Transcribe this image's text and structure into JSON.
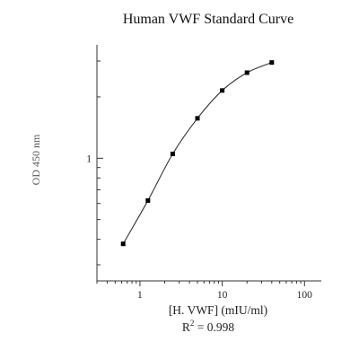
{
  "chart_data": {
    "type": "line",
    "title": "Human VWF Standard Curve",
    "xlabel": "[H. VWF] (mIU/ml)",
    "ylabel": "OD 450 nm",
    "x_scale": "log",
    "y_scale": "log",
    "xlim": [
      0.3,
      160
    ],
    "ylim": [
      0.25,
      3.6
    ],
    "x_tick_labels": [
      "1",
      "10",
      "100"
    ],
    "y_tick_labels": [
      "1"
    ],
    "series": [
      {
        "x": [
          0.625,
          1.25,
          2.5,
          5,
          10,
          20,
          40
        ],
        "values": [
          0.38,
          0.62,
          1.05,
          1.57,
          2.15,
          2.63,
          2.95
        ]
      }
    ],
    "grid": false,
    "annotation": {
      "prefix": "R",
      "superscript": "2",
      "text": " = 0.998"
    },
    "colors": {
      "line": "#333333",
      "marker": "#000000",
      "axis": "#333333"
    }
  }
}
